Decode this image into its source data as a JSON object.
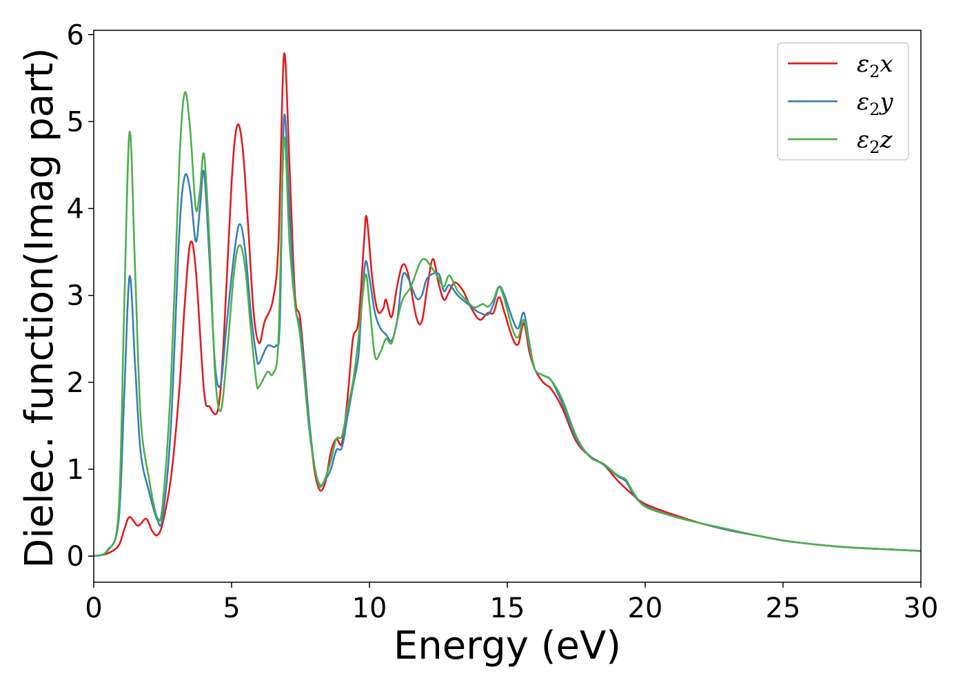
{
  "chart_data": {
    "type": "line",
    "title": "",
    "xlabel": "Energy (eV)",
    "ylabel": "Dielec. function(Imag part)",
    "xlim": [
      0,
      30
    ],
    "ylim": [
      -0.3,
      6.05
    ],
    "xticks": [
      0,
      5,
      10,
      15,
      20,
      25,
      30
    ],
    "yticks": [
      0,
      1,
      2,
      3,
      4,
      5,
      6
    ],
    "grid": false,
    "legend_position": "top-right",
    "series": [
      {
        "name": "ε2x",
        "label_base": "ε",
        "label_sub": "2",
        "label_suffix": "x",
        "color": "#e41a1c",
        "points": [
          [
            0,
            0
          ],
          [
            0.5,
            0.03
          ],
          [
            0.9,
            0.12
          ],
          [
            1.1,
            0.3
          ],
          [
            1.3,
            0.45
          ],
          [
            1.6,
            0.35
          ],
          [
            1.9,
            0.43
          ],
          [
            2.1,
            0.3
          ],
          [
            2.3,
            0.24
          ],
          [
            2.5,
            0.38
          ],
          [
            2.8,
            0.9
          ],
          [
            3.1,
            1.9
          ],
          [
            3.3,
            2.9
          ],
          [
            3.5,
            3.6
          ],
          [
            3.7,
            3.3
          ],
          [
            4.0,
            1.9
          ],
          [
            4.2,
            1.72
          ],
          [
            4.5,
            1.68
          ],
          [
            4.7,
            2.4
          ],
          [
            5.0,
            4.3
          ],
          [
            5.2,
            4.95
          ],
          [
            5.4,
            4.7
          ],
          [
            5.6,
            3.8
          ],
          [
            5.8,
            2.8
          ],
          [
            6.0,
            2.45
          ],
          [
            6.2,
            2.7
          ],
          [
            6.5,
            2.95
          ],
          [
            6.7,
            3.6
          ],
          [
            6.9,
            5.77
          ],
          [
            7.1,
            4.5
          ],
          [
            7.3,
            3.0
          ],
          [
            7.5,
            2.7
          ],
          [
            7.8,
            1.6
          ],
          [
            8.0,
            1.0
          ],
          [
            8.2,
            0.76
          ],
          [
            8.4,
            0.85
          ],
          [
            8.6,
            1.2
          ],
          [
            8.8,
            1.35
          ],
          [
            9.0,
            1.3
          ],
          [
            9.2,
            1.8
          ],
          [
            9.4,
            2.5
          ],
          [
            9.6,
            2.7
          ],
          [
            9.8,
            3.6
          ],
          [
            9.9,
            3.9
          ],
          [
            10.1,
            3.2
          ],
          [
            10.3,
            2.82
          ],
          [
            10.5,
            2.85
          ],
          [
            10.6,
            2.95
          ],
          [
            10.8,
            2.75
          ],
          [
            11.0,
            3.1
          ],
          [
            11.2,
            3.35
          ],
          [
            11.4,
            3.25
          ],
          [
            11.7,
            2.75
          ],
          [
            11.9,
            2.7
          ],
          [
            12.1,
            3.1
          ],
          [
            12.3,
            3.42
          ],
          [
            12.5,
            3.15
          ],
          [
            12.7,
            2.95
          ],
          [
            12.9,
            3.05
          ],
          [
            13.1,
            3.15
          ],
          [
            13.4,
            3.05
          ],
          [
            13.7,
            2.85
          ],
          [
            14.0,
            2.72
          ],
          [
            14.3,
            2.8
          ],
          [
            14.5,
            2.8
          ],
          [
            14.7,
            2.98
          ],
          [
            14.9,
            2.8
          ],
          [
            15.2,
            2.5
          ],
          [
            15.4,
            2.44
          ],
          [
            15.6,
            2.68
          ],
          [
            15.8,
            2.35
          ],
          [
            16.0,
            2.15
          ],
          [
            16.3,
            2.0
          ],
          [
            16.6,
            1.92
          ],
          [
            17.0,
            1.7
          ],
          [
            17.5,
            1.32
          ],
          [
            18.0,
            1.15
          ],
          [
            18.5,
            1.05
          ],
          [
            19.0,
            0.87
          ],
          [
            19.5,
            0.72
          ],
          [
            20.0,
            0.6
          ],
          [
            21.0,
            0.48
          ],
          [
            22.0,
            0.38
          ],
          [
            23.0,
            0.3
          ],
          [
            24.0,
            0.24
          ],
          [
            25.0,
            0.18
          ],
          [
            26.0,
            0.14
          ],
          [
            27.0,
            0.11
          ],
          [
            28.0,
            0.09
          ],
          [
            29.0,
            0.075
          ],
          [
            30.0,
            0.06
          ]
        ]
      },
      {
        "name": "ε2y",
        "label_base": "ε",
        "label_sub": "2",
        "label_suffix": "y",
        "color": "#377eb8",
        "points": [
          [
            0,
            0
          ],
          [
            0.5,
            0.06
          ],
          [
            0.9,
            0.4
          ],
          [
            1.1,
            1.8
          ],
          [
            1.3,
            3.22
          ],
          [
            1.5,
            2.2
          ],
          [
            1.7,
            1.2
          ],
          [
            2.0,
            0.75
          ],
          [
            2.3,
            0.42
          ],
          [
            2.5,
            0.45
          ],
          [
            2.8,
            1.5
          ],
          [
            3.1,
            3.7
          ],
          [
            3.3,
            4.37
          ],
          [
            3.5,
            4.2
          ],
          [
            3.7,
            3.62
          ],
          [
            3.85,
            4.0
          ],
          [
            4.0,
            4.42
          ],
          [
            4.2,
            3.4
          ],
          [
            4.4,
            2.2
          ],
          [
            4.6,
            1.97
          ],
          [
            4.8,
            2.6
          ],
          [
            5.1,
            3.5
          ],
          [
            5.3,
            3.82
          ],
          [
            5.5,
            3.5
          ],
          [
            5.7,
            2.8
          ],
          [
            5.9,
            2.3
          ],
          [
            6.0,
            2.22
          ],
          [
            6.3,
            2.42
          ],
          [
            6.6,
            2.42
          ],
          [
            6.75,
            2.7
          ],
          [
            6.9,
            5.05
          ],
          [
            7.1,
            4.0
          ],
          [
            7.3,
            2.9
          ],
          [
            7.5,
            2.6
          ],
          [
            7.8,
            1.6
          ],
          [
            8.0,
            1.05
          ],
          [
            8.2,
            0.82
          ],
          [
            8.4,
            0.88
          ],
          [
            8.6,
            1.0
          ],
          [
            8.8,
            1.22
          ],
          [
            9.0,
            1.25
          ],
          [
            9.2,
            1.6
          ],
          [
            9.4,
            1.95
          ],
          [
            9.6,
            2.3
          ],
          [
            9.7,
            2.8
          ],
          [
            9.85,
            3.38
          ],
          [
            10.0,
            3.2
          ],
          [
            10.2,
            2.8
          ],
          [
            10.4,
            2.62
          ],
          [
            10.6,
            2.55
          ],
          [
            10.8,
            2.48
          ],
          [
            11.0,
            2.7
          ],
          [
            11.2,
            3.22
          ],
          [
            11.4,
            3.2
          ],
          [
            11.7,
            2.97
          ],
          [
            11.9,
            3.0
          ],
          [
            12.1,
            3.2
          ],
          [
            12.5,
            3.25
          ],
          [
            12.7,
            3.05
          ],
          [
            12.9,
            3.12
          ],
          [
            13.2,
            3.0
          ],
          [
            13.5,
            2.92
          ],
          [
            13.8,
            2.84
          ],
          [
            14.0,
            2.8
          ],
          [
            14.3,
            2.78
          ],
          [
            14.5,
            2.9
          ],
          [
            14.7,
            3.1
          ],
          [
            14.9,
            3.0
          ],
          [
            15.2,
            2.72
          ],
          [
            15.4,
            2.62
          ],
          [
            15.6,
            2.8
          ],
          [
            15.8,
            2.45
          ],
          [
            16.0,
            2.15
          ],
          [
            16.3,
            2.08
          ],
          [
            16.6,
            2.02
          ],
          [
            17.0,
            1.75
          ],
          [
            17.5,
            1.35
          ],
          [
            18.0,
            1.15
          ],
          [
            18.5,
            1.05
          ],
          [
            19.0,
            0.92
          ],
          [
            19.3,
            0.86
          ],
          [
            19.6,
            0.7
          ],
          [
            20.0,
            0.58
          ],
          [
            21.0,
            0.46
          ],
          [
            22.0,
            0.38
          ],
          [
            23.0,
            0.3
          ],
          [
            24.0,
            0.24
          ],
          [
            25.0,
            0.18
          ],
          [
            26.0,
            0.14
          ],
          [
            27.0,
            0.11
          ],
          [
            28.0,
            0.09
          ],
          [
            29.0,
            0.075
          ],
          [
            30.0,
            0.06
          ]
        ]
      },
      {
        "name": "ε2z",
        "label_base": "ε",
        "label_sub": "2",
        "label_suffix": "z",
        "color": "#4daf4a",
        "points": [
          [
            0,
            0
          ],
          [
            0.5,
            0.07
          ],
          [
            0.9,
            0.5
          ],
          [
            1.1,
            2.8
          ],
          [
            1.3,
            4.88
          ],
          [
            1.5,
            3.3
          ],
          [
            1.7,
            1.6
          ],
          [
            2.0,
            0.9
          ],
          [
            2.3,
            0.45
          ],
          [
            2.5,
            0.6
          ],
          [
            2.8,
            2.0
          ],
          [
            3.1,
            4.5
          ],
          [
            3.3,
            5.33
          ],
          [
            3.5,
            4.9
          ],
          [
            3.7,
            4.0
          ],
          [
            3.85,
            4.2
          ],
          [
            4.0,
            4.62
          ],
          [
            4.2,
            3.6
          ],
          [
            4.4,
            2.1
          ],
          [
            4.6,
            1.67
          ],
          [
            4.8,
            2.2
          ],
          [
            5.1,
            3.3
          ],
          [
            5.3,
            3.58
          ],
          [
            5.5,
            3.3
          ],
          [
            5.7,
            2.6
          ],
          [
            5.9,
            2.0
          ],
          [
            6.0,
            1.95
          ],
          [
            6.3,
            2.12
          ],
          [
            6.5,
            2.1
          ],
          [
            6.7,
            2.5
          ],
          [
            6.9,
            4.8
          ],
          [
            7.1,
            3.6
          ],
          [
            7.3,
            2.9
          ],
          [
            7.5,
            2.5
          ],
          [
            7.8,
            1.5
          ],
          [
            8.0,
            1.05
          ],
          [
            8.2,
            0.8
          ],
          [
            8.4,
            0.9
          ],
          [
            8.6,
            1.1
          ],
          [
            8.8,
            1.35
          ],
          [
            9.0,
            1.38
          ],
          [
            9.2,
            1.7
          ],
          [
            9.4,
            2.0
          ],
          [
            9.6,
            2.5
          ],
          [
            9.85,
            3.23
          ],
          [
            10.0,
            2.9
          ],
          [
            10.2,
            2.3
          ],
          [
            10.4,
            2.35
          ],
          [
            10.6,
            2.5
          ],
          [
            10.8,
            2.45
          ],
          [
            11.0,
            2.7
          ],
          [
            11.2,
            2.95
          ],
          [
            11.5,
            3.1
          ],
          [
            11.8,
            3.35
          ],
          [
            12.0,
            3.42
          ],
          [
            12.3,
            3.3
          ],
          [
            12.5,
            3.2
          ],
          [
            12.7,
            3.1
          ],
          [
            12.9,
            3.23
          ],
          [
            13.2,
            3.05
          ],
          [
            13.5,
            2.95
          ],
          [
            13.8,
            2.86
          ],
          [
            14.1,
            2.9
          ],
          [
            14.3,
            2.87
          ],
          [
            14.5,
            2.95
          ],
          [
            14.7,
            3.1
          ],
          [
            14.9,
            2.95
          ],
          [
            15.2,
            2.6
          ],
          [
            15.4,
            2.52
          ],
          [
            15.6,
            2.72
          ],
          [
            15.8,
            2.42
          ],
          [
            16.0,
            2.15
          ],
          [
            16.3,
            2.08
          ],
          [
            16.6,
            2.02
          ],
          [
            17.0,
            1.8
          ],
          [
            17.5,
            1.38
          ],
          [
            18.0,
            1.14
          ],
          [
            18.5,
            1.06
          ],
          [
            19.0,
            0.93
          ],
          [
            19.3,
            0.88
          ],
          [
            19.6,
            0.72
          ],
          [
            20.0,
            0.57
          ],
          [
            21.0,
            0.46
          ],
          [
            22.0,
            0.38
          ],
          [
            23.0,
            0.31
          ],
          [
            24.0,
            0.24
          ],
          [
            25.0,
            0.18
          ],
          [
            26.0,
            0.14
          ],
          [
            27.0,
            0.11
          ],
          [
            28.0,
            0.09
          ],
          [
            29.0,
            0.075
          ],
          [
            30.0,
            0.06
          ]
        ]
      }
    ]
  }
}
